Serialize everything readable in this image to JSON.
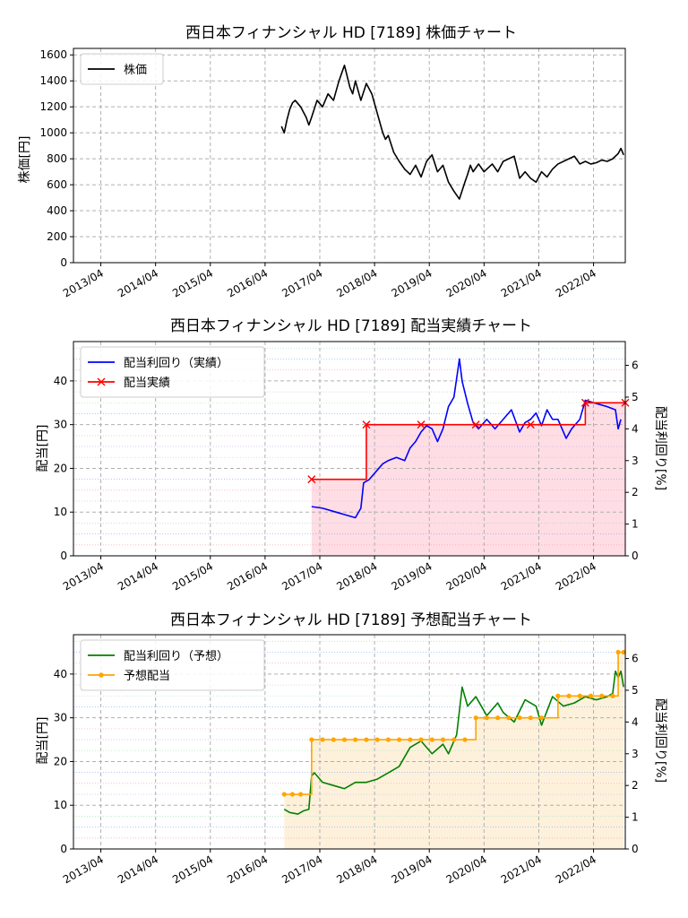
{
  "chart_data": [
    {
      "type": "line",
      "title": "西日本フィナンシャル HD [7189]  株価チャート",
      "ylabel": "株価[円]",
      "ylim": [
        0,
        1650
      ],
      "yticks": [
        0,
        200,
        400,
        600,
        800,
        1000,
        1200,
        1400,
        1600
      ],
      "xlim": [
        2012.75,
        2022.83
      ],
      "xticks": [
        2013.25,
        2014.25,
        2015.25,
        2016.25,
        2017.25,
        2018.25,
        2019.25,
        2020.25,
        2021.25,
        2022.25
      ],
      "xticklabels": [
        "2013/04",
        "2014/04",
        "2015/04",
        "2016/04",
        "2017/04",
        "2018/04",
        "2019/04",
        "2020/04",
        "2021/04",
        "2022/04"
      ],
      "grid": true,
      "legend": {
        "position": "top-left",
        "entries": [
          "株価"
        ]
      },
      "series": [
        {
          "name": "株価",
          "color": "#000000",
          "x": [
            2016.55,
            2016.6,
            2016.65,
            2016.7,
            2016.75,
            2016.8,
            2016.9,
            2017.0,
            2017.05,
            2017.1,
            2017.2,
            2017.3,
            2017.4,
            2017.5,
            2017.6,
            2017.7,
            2017.8,
            2017.85,
            2017.9,
            2018.0,
            2018.1,
            2018.2,
            2018.3,
            2018.4,
            2018.45,
            2018.5,
            2018.6,
            2018.7,
            2018.8,
            2018.9,
            2019.0,
            2019.1,
            2019.2,
            2019.3,
            2019.4,
            2019.5,
            2019.6,
            2019.7,
            2019.8,
            2019.9,
            2019.95,
            2020.0,
            2020.05,
            2020.15,
            2020.25,
            2020.4,
            2020.5,
            2020.6,
            2020.8,
            2020.9,
            2021.0,
            2021.1,
            2021.2,
            2021.3,
            2021.4,
            2021.5,
            2021.6,
            2021.8,
            2021.9,
            2022.0,
            2022.1,
            2022.2,
            2022.3,
            2022.4,
            2022.5,
            2022.6,
            2022.7,
            2022.75,
            2022.8
          ],
          "y": [
            1050,
            1000,
            1100,
            1180,
            1230,
            1250,
            1200,
            1120,
            1060,
            1120,
            1250,
            1200,
            1300,
            1250,
            1400,
            1520,
            1350,
            1300,
            1400,
            1250,
            1380,
            1300,
            1150,
            1000,
            950,
            980,
            850,
            780,
            720,
            680,
            750,
            660,
            780,
            830,
            700,
            750,
            620,
            550,
            490,
            620,
            680,
            750,
            700,
            760,
            700,
            760,
            700,
            780,
            820,
            650,
            700,
            650,
            620,
            700,
            660,
            720,
            760,
            800,
            820,
            760,
            780,
            760,
            770,
            790,
            780,
            800,
            840,
            880,
            830
          ]
        }
      ]
    },
    {
      "type": "line",
      "title": "西日本フィナンシャル HD [7189]  配当実績チャート",
      "ylabel": "配当[円]",
      "y2label": "配当利回り[%]",
      "ylim": [
        0,
        49
      ],
      "yticks": [
        0,
        10,
        20,
        30,
        40
      ],
      "y2lim": [
        0,
        6.75
      ],
      "y2ticks": [
        0,
        1,
        2,
        3,
        4,
        5,
        6
      ],
      "xlim": [
        2012.75,
        2022.83
      ],
      "xticks": [
        2013.25,
        2014.25,
        2015.25,
        2016.25,
        2017.25,
        2018.25,
        2019.25,
        2020.25,
        2021.25,
        2022.25
      ],
      "xticklabels": [
        "2013/04",
        "2014/04",
        "2015/04",
        "2016/04",
        "2017/04",
        "2018/04",
        "2019/04",
        "2020/04",
        "2021/04",
        "2022/04"
      ],
      "grid": true,
      "legend": {
        "position": "top-left",
        "entries": [
          "配当利回り（実績）",
          "配当実績"
        ]
      },
      "series": [
        {
          "name": "配当利回り（実績）",
          "axis": "right",
          "color": "#0000ff",
          "x": [
            2017.1,
            2017.3,
            2017.5,
            2017.7,
            2017.9,
            2018.0,
            2018.05,
            2018.15,
            2018.25,
            2018.4,
            2018.5,
            2018.65,
            2018.8,
            2018.9,
            2019.0,
            2019.1,
            2019.2,
            2019.3,
            2019.4,
            2019.5,
            2019.6,
            2019.7,
            2019.8,
            2019.85,
            2019.95,
            2020.05,
            2020.15,
            2020.3,
            2020.45,
            2020.6,
            2020.75,
            2020.9,
            2021.0,
            2021.1,
            2021.2,
            2021.3,
            2021.4,
            2021.5,
            2021.6,
            2021.75,
            2021.85,
            2022.0,
            2022.1,
            2022.3,
            2022.5,
            2022.65,
            2022.7,
            2022.75
          ],
          "y": [
            1.55,
            1.5,
            1.4,
            1.3,
            1.2,
            1.5,
            2.3,
            2.4,
            2.6,
            2.9,
            3.0,
            3.1,
            3.0,
            3.4,
            3.6,
            3.9,
            4.1,
            4.0,
            3.6,
            4.0,
            4.7,
            5.0,
            6.2,
            5.5,
            4.8,
            4.2,
            4.0,
            4.3,
            4.0,
            4.3,
            4.6,
            3.9,
            4.2,
            4.3,
            4.5,
            4.1,
            4.6,
            4.3,
            4.3,
            3.7,
            4.0,
            4.3,
            4.9,
            4.8,
            4.7,
            4.6,
            4.0,
            4.3
          ]
        },
        {
          "name": "配当実績",
          "axis": "left",
          "color": "#ff0000",
          "marker": "x",
          "x": [
            2017.1,
            2018.1,
            2019.1,
            2020.1,
            2021.1,
            2022.1,
            2022.83
          ],
          "y": [
            17.5,
            30,
            30,
            30,
            30,
            35,
            35
          ]
        }
      ]
    },
    {
      "type": "line",
      "title": "西日本フィナンシャル HD [7189]  予想配当チャート",
      "ylabel": "配当[円]",
      "y2label": "配当利回り[%]",
      "ylim": [
        0,
        49
      ],
      "yticks": [
        0,
        10,
        20,
        30,
        40
      ],
      "y2lim": [
        0,
        6.75
      ],
      "y2ticks": [
        0,
        1,
        2,
        3,
        4,
        5,
        6
      ],
      "xlim": [
        2012.75,
        2022.83
      ],
      "xticks": [
        2013.25,
        2014.25,
        2015.25,
        2016.25,
        2017.25,
        2018.25,
        2019.25,
        2020.25,
        2021.25,
        2022.25
      ],
      "xticklabels": [
        "2013/04",
        "2014/04",
        "2015/04",
        "2016/04",
        "2017/04",
        "2018/04",
        "2019/04",
        "2020/04",
        "2021/04",
        "2022/04"
      ],
      "grid": true,
      "legend": {
        "position": "top-left",
        "entries": [
          "配当利回り（予想）",
          "予想配当"
        ]
      },
      "series": [
        {
          "name": "配当利回り（予想）",
          "axis": "right",
          "color": "#008000",
          "x": [
            2016.6,
            2016.7,
            2016.85,
            2016.95,
            2017.05,
            2017.1,
            2017.15,
            2017.3,
            2017.5,
            2017.7,
            2017.9,
            2018.1,
            2018.3,
            2018.5,
            2018.7,
            2018.9,
            2019.1,
            2019.3,
            2019.5,
            2019.6,
            2019.75,
            2019.85,
            2019.95,
            2020.1,
            2020.3,
            2020.5,
            2020.6,
            2020.8,
            2021.0,
            2021.2,
            2021.3,
            2021.5,
            2021.7,
            2021.9,
            2022.1,
            2022.3,
            2022.5,
            2022.6,
            2022.65,
            2022.7,
            2022.75,
            2022.8
          ],
          "y": [
            1.25,
            1.15,
            1.1,
            1.2,
            1.25,
            2.3,
            2.4,
            2.1,
            2.0,
            1.9,
            2.1,
            2.1,
            2.2,
            2.4,
            2.6,
            3.2,
            3.4,
            3.0,
            3.3,
            3.0,
            3.6,
            5.1,
            4.5,
            4.8,
            4.2,
            4.6,
            4.3,
            4.0,
            4.7,
            4.5,
            3.9,
            4.8,
            4.5,
            4.6,
            4.8,
            4.7,
            4.8,
            4.9,
            5.6,
            5.4,
            5.6,
            5.1
          ]
        },
        {
          "name": "予想配当",
          "axis": "left",
          "color": "#ffa500",
          "marker": "o",
          "x": [
            2016.6,
            2016.75,
            2016.9,
            2017.1,
            2017.3,
            2017.5,
            2017.7,
            2017.9,
            2018.1,
            2018.3,
            2018.5,
            2018.7,
            2018.9,
            2019.1,
            2019.3,
            2019.5,
            2019.7,
            2019.9,
            2020.1,
            2020.3,
            2020.5,
            2020.7,
            2020.9,
            2021.1,
            2021.3,
            2021.6,
            2021.8,
            2022.0,
            2022.2,
            2022.4,
            2022.6,
            2022.7,
            2022.8
          ],
          "y": [
            12.5,
            12.5,
            12.5,
            25,
            25,
            25,
            25,
            25,
            25,
            25,
            25,
            25,
            25,
            25,
            25,
            25,
            25,
            25,
            30,
            30,
            30,
            30,
            30,
            30,
            30,
            35,
            35,
            35,
            35,
            35,
            35,
            45,
            45
          ]
        }
      ]
    }
  ]
}
